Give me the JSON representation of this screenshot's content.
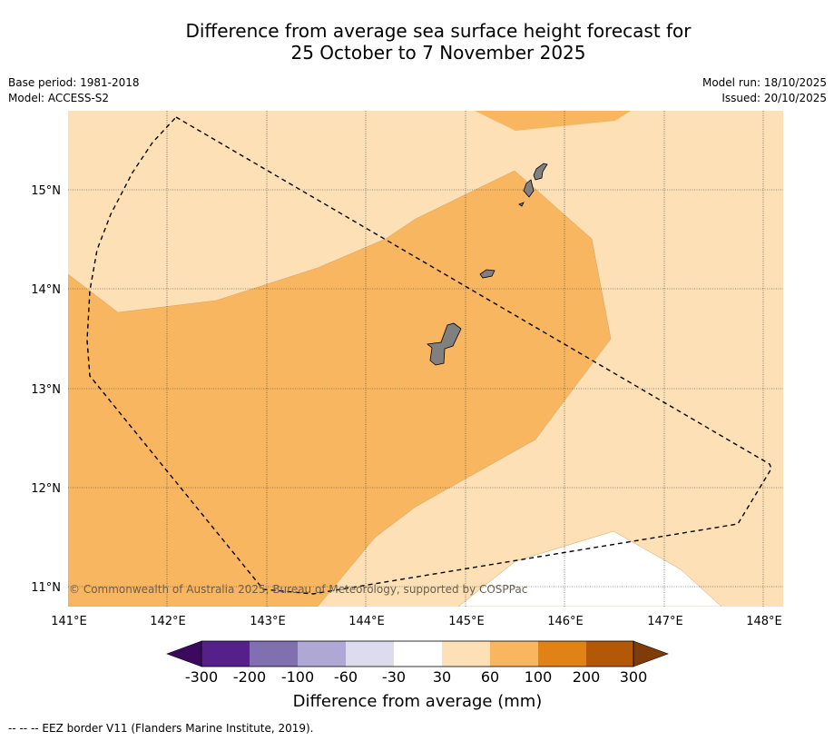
{
  "title": {
    "line1": "Difference from average sea surface height forecast for",
    "line2": "25 October to 7 November 2025"
  },
  "meta_left": {
    "base_period": "Base period: 1981-2018",
    "model": "Model: ACCESS-S2"
  },
  "meta_right": {
    "model_run": "Model run: 18/10/2025",
    "issued": "Issued: 20/10/2025"
  },
  "map": {
    "lon_range": [
      141.0,
      148.2
    ],
    "lat_range": [
      10.8,
      15.8
    ],
    "lon_ticks": [
      "141°E",
      "142°E",
      "143°E",
      "144°E",
      "145°E",
      "146°E",
      "147°E",
      "148°E"
    ],
    "lat_ticks": [
      "11°N",
      "12°N",
      "13°N",
      "14°N",
      "15°N"
    ],
    "copyright": "© Commonwealth of Australia 2025, Bureau of Meteorology, supported by COSPPac",
    "colors": {
      "band_30_60": "#fde0b5",
      "band_60_100": "#f9b660",
      "band_0_30": "#ffffff",
      "land": "#808080"
    }
  },
  "colorbar": {
    "ticks": [
      "-300",
      "-200",
      "-100",
      "-60",
      "-30",
      "30",
      "60",
      "100",
      "200",
      "300"
    ],
    "colors": [
      "#3b0a5e",
      "#56208a",
      "#8070b0",
      "#b0a8d4",
      "#dcdcee",
      "#ffffff",
      "#fde0b5",
      "#f9b660",
      "#e08214",
      "#b35806",
      "#7f3b08"
    ],
    "label": "Difference from average (mm)"
  },
  "footer": "--  --  -- EEZ border V11 (Flanders Marine Institute, 2019)."
}
